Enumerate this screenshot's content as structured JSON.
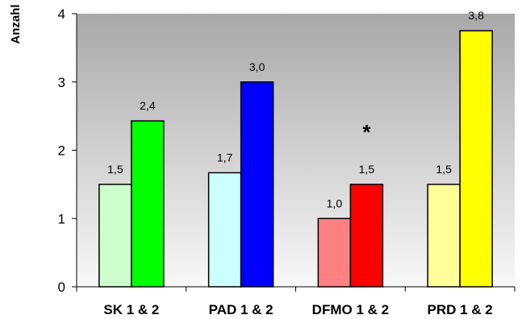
{
  "chart_data": {
    "type": "bar",
    "ylabel": "Anzahl",
    "xlabel": "",
    "ylim": [
      0,
      4
    ],
    "yticks": [
      0,
      1,
      2,
      3,
      4
    ],
    "grid": false,
    "categories": [
      "SK 1 & 2",
      "PAD 1 & 2",
      "DFMO 1 & 2",
      "PRD 1 & 2"
    ],
    "groups": [
      {
        "category": "SK 1 & 2",
        "bars": [
          {
            "value": 1.5,
            "label": "1,5",
            "color": "#ccffcc"
          },
          {
            "value": 2.43,
            "label": "2,4",
            "color": "#00ff00"
          }
        ]
      },
      {
        "category": "PAD 1 & 2",
        "bars": [
          {
            "value": 1.67,
            "label": "1,7",
            "color": "#ccffff"
          },
          {
            "value": 3.0,
            "label": "3,0",
            "color": "#0000ff"
          }
        ]
      },
      {
        "category": "DFMO 1 & 2",
        "bars": [
          {
            "value": 1.0,
            "label": "1,0",
            "color": "#ff8080"
          },
          {
            "value": 1.5,
            "label": "1,5",
            "color": "#ff0000"
          }
        ]
      },
      {
        "category": "PRD 1 & 2",
        "bars": [
          {
            "value": 1.5,
            "label": "1,5",
            "color": "#ffff99"
          },
          {
            "value": 3.75,
            "label": "3,8",
            "color": "#ffff00"
          }
        ]
      }
    ],
    "annotations": [
      {
        "category": "DFMO 1 & 2",
        "text": "*"
      }
    ],
    "plot_background": {
      "top": "#a8a8a8",
      "bottom": "#f8f8f8"
    }
  }
}
